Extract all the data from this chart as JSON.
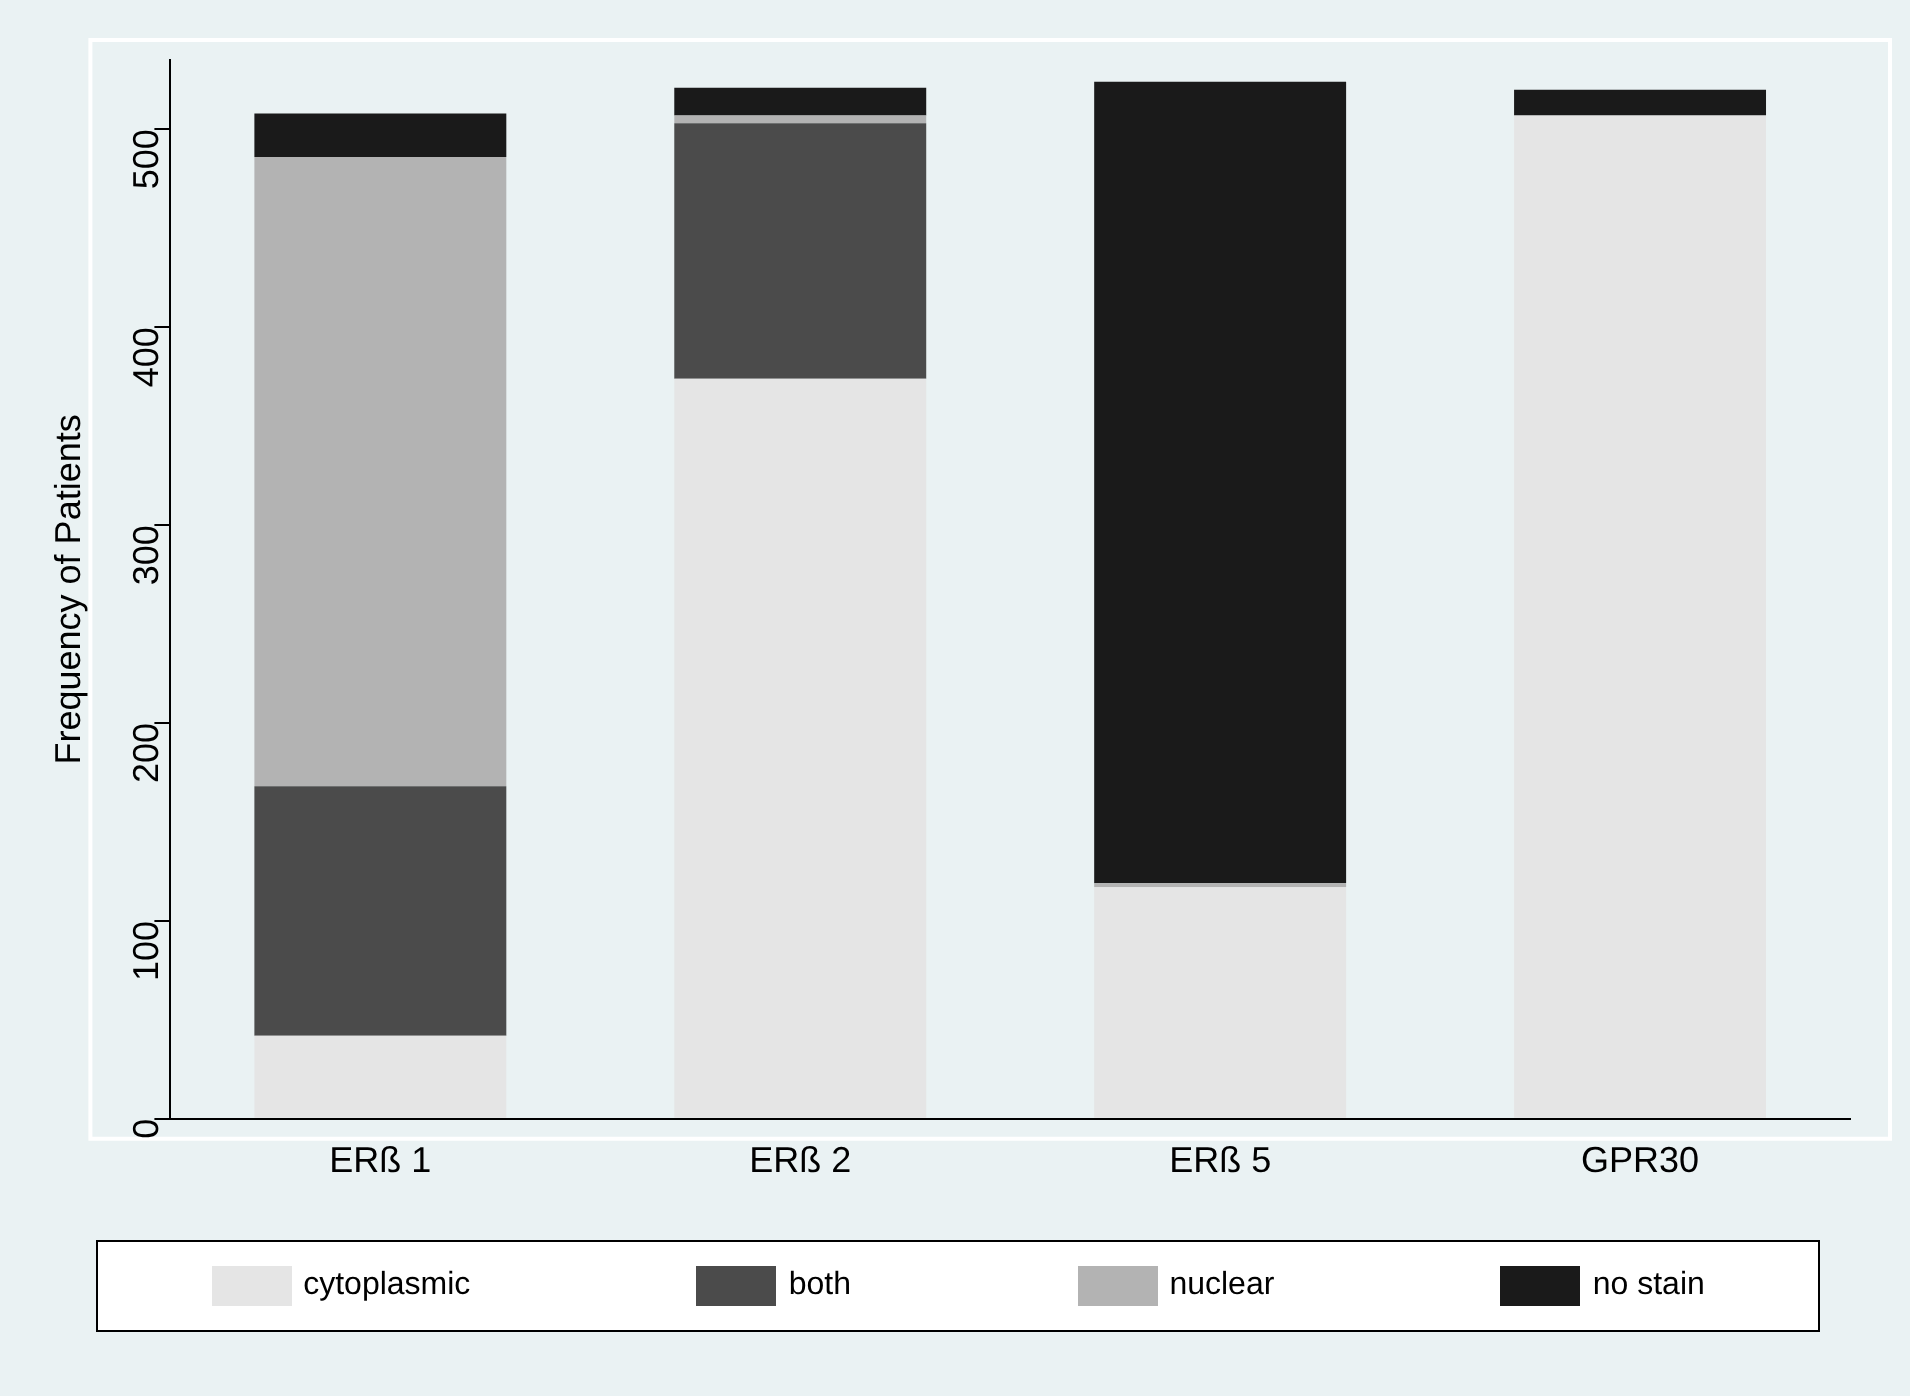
{
  "chart_data": {
    "type": "bar",
    "stacked": true,
    "ylabel": "Frequency of Patients",
    "categories": [
      "ERß 1",
      "ERß 2",
      "ERß 5",
      "GPR30"
    ],
    "series": [
      {
        "name": "cytoplasmic",
        "color": "#e5e5e5",
        "values": [
          42,
          374,
          117,
          507
        ]
      },
      {
        "name": "both",
        "color": "#4b4b4b",
        "values": [
          126,
          129,
          0,
          0
        ]
      },
      {
        "name": "nuclear",
        "color": "#b3b3b3",
        "values": [
          318,
          4,
          2,
          0
        ]
      },
      {
        "name": "no stain",
        "color": "#1a1a1a",
        "values": [
          22,
          14,
          405,
          13
        ]
      }
    ],
    "ylim": [
      0,
      535
    ],
    "yticks": [
      0,
      100,
      200,
      300,
      400,
      500
    ],
    "grid": false,
    "legend": "bottom"
  }
}
